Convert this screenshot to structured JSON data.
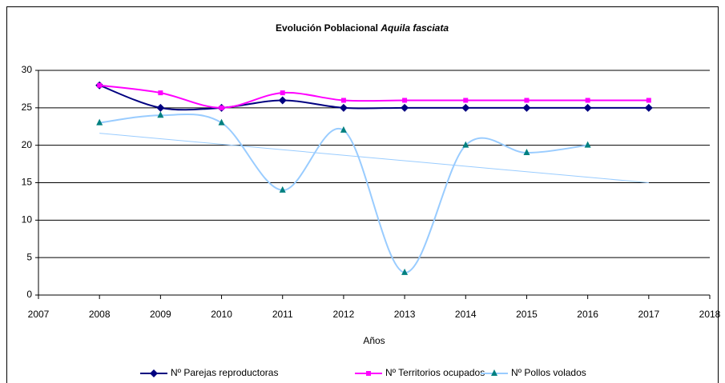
{
  "chart_data": {
    "type": "line",
    "title": "Evolución Poblacional",
    "title_italic": "Aquila fasciata",
    "x_label": "Años",
    "x": [
      2008,
      2009,
      2010,
      2011,
      2012,
      2013,
      2014,
      2015,
      2016,
      2017
    ],
    "series": [
      {
        "name": "Nº Parejas reproductoras",
        "color": "#000080",
        "marker": "diamond",
        "values": [
          28,
          25,
          25,
          26,
          25,
          25,
          25,
          25,
          25,
          25
        ]
      },
      {
        "name": "Nº Territorios ocupados",
        "color": "#ff00ff",
        "marker": "square",
        "values": [
          28,
          27,
          25,
          27,
          26,
          26,
          26,
          26,
          26,
          26
        ]
      },
      {
        "name": "Nº Pollos volados",
        "color": "#99ccff",
        "marker_color": "#008080",
        "marker": "triangle",
        "values": [
          23,
          24,
          23,
          14,
          22,
          3,
          20,
          19,
          20,
          null
        ],
        "trendline": true
      }
    ],
    "xlim": [
      2007,
      2018
    ],
    "xticks": [
      2007,
      2008,
      2009,
      2010,
      2011,
      2012,
      2013,
      2014,
      2015,
      2016,
      2017,
      2018
    ],
    "ylim": [
      0,
      30
    ],
    "yticks": [
      0,
      5,
      10,
      15,
      20,
      25,
      30
    ],
    "grid": true,
    "smooth": true,
    "legend": "bottom"
  }
}
